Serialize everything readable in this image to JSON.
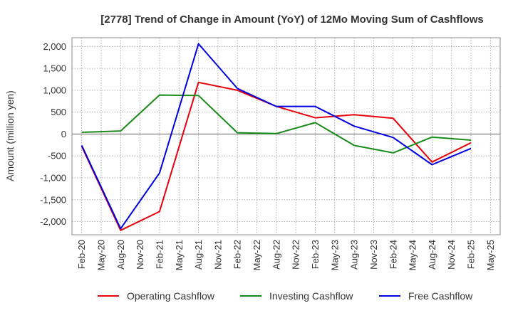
{
  "chart_data": {
    "type": "line",
    "title": "[2778]  Trend of Change in Amount (YoY) of 12Mo Moving Sum of Cashflows",
    "xlabel": "",
    "ylabel": "Amount (million yen)",
    "ylim": [
      -2300,
      2200
    ],
    "yticks": [
      2000,
      1500,
      1000,
      500,
      0,
      -500,
      -1000,
      -1500,
      -2000
    ],
    "ytick_labels": [
      "2,000",
      "1,500",
      "1,000",
      "500",
      "0",
      "-500",
      "-1,000",
      "-1,500",
      "-2,000"
    ],
    "categories": [
      "Feb-20",
      "May-20",
      "Aug-20",
      "Nov-20",
      "Feb-21",
      "May-21",
      "Aug-21",
      "Nov-21",
      "Feb-22",
      "May-22",
      "Aug-22",
      "Nov-22",
      "Feb-23",
      "May-23",
      "Aug-23",
      "Nov-23",
      "Feb-24",
      "May-24",
      "Aug-24",
      "Nov-24",
      "Feb-25",
      "May-25"
    ],
    "grid": true,
    "legend_position": "bottom",
    "series": [
      {
        "name": "Operating Cashflow",
        "color": "#e8000b",
        "points": [
          [
            "Feb-20",
            -280
          ],
          [
            "Aug-20",
            -2200
          ],
          [
            "Feb-21",
            -1770
          ],
          [
            "Aug-21",
            1180
          ],
          [
            "Feb-22",
            1000
          ],
          [
            "Aug-22",
            630
          ],
          [
            "Feb-23",
            370
          ],
          [
            "Aug-23",
            440
          ],
          [
            "Feb-24",
            360
          ],
          [
            "Aug-24",
            -640
          ],
          [
            "Feb-25",
            -200
          ]
        ]
      },
      {
        "name": "Investing Cashflow",
        "color": "#1a8a1a",
        "points": [
          [
            "Feb-20",
            40
          ],
          [
            "Aug-20",
            70
          ],
          [
            "Feb-21",
            890
          ],
          [
            "Aug-21",
            880
          ],
          [
            "Feb-22",
            30
          ],
          [
            "Aug-22",
            10
          ],
          [
            "Feb-23",
            260
          ],
          [
            "Aug-23",
            -260
          ],
          [
            "Feb-24",
            -430
          ],
          [
            "Aug-24",
            -70
          ],
          [
            "Feb-25",
            -140
          ]
        ]
      },
      {
        "name": "Free Cashflow",
        "color": "#0000e0",
        "points": [
          [
            "Feb-20",
            -260
          ],
          [
            "Aug-20",
            -2160
          ],
          [
            "Feb-21",
            -890
          ],
          [
            "Aug-21",
            2060
          ],
          [
            "Feb-22",
            1040
          ],
          [
            "Aug-22",
            630
          ],
          [
            "Feb-23",
            630
          ],
          [
            "Aug-23",
            180
          ],
          [
            "Feb-24",
            -80
          ],
          [
            "Aug-24",
            -700
          ],
          [
            "Feb-25",
            -330
          ]
        ]
      }
    ]
  }
}
